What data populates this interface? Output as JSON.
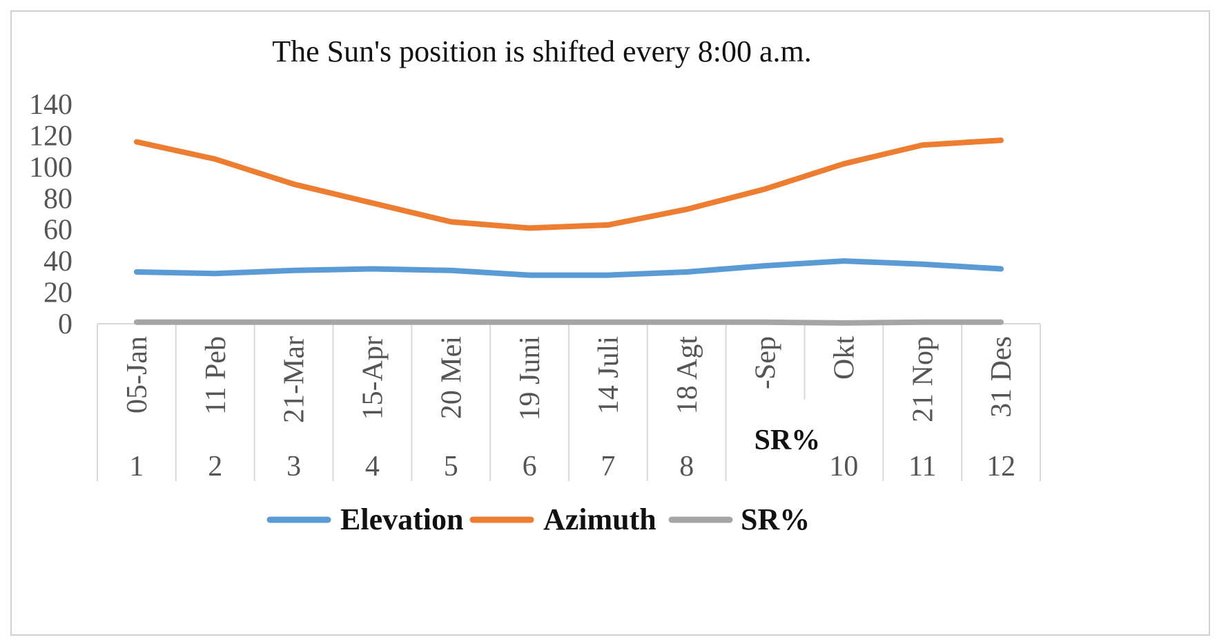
{
  "chart_data": {
    "type": "line",
    "title": "The Sun's position is shifted every 8:00 a.m.",
    "categories": [
      {
        "date": "05-Jan",
        "month": "1"
      },
      {
        "date": "11 Peb",
        "month": "2"
      },
      {
        "date": "21-Mar",
        "month": "3"
      },
      {
        "date": "15-Apr",
        "month": "4"
      },
      {
        "date": "20 Mei",
        "month": "5"
      },
      {
        "date": "19 Juni",
        "month": "6"
      },
      {
        "date": "14 Juli",
        "month": "7"
      },
      {
        "date": "18 Agt",
        "month": "8"
      },
      {
        "date": "-Sep",
        "month": "9"
      },
      {
        "date": "Okt",
        "month": "10"
      },
      {
        "date": "21 Nop",
        "month": "11"
      },
      {
        "date": "31 Des",
        "month": "12"
      }
    ],
    "ylim": [
      0,
      140
    ],
    "yticks": [
      0,
      20,
      40,
      60,
      80,
      100,
      120,
      140
    ],
    "series": [
      {
        "name": "Elevation",
        "color": "#5B9BD5",
        "values": [
          33,
          32,
          34,
          35,
          34,
          31,
          31,
          33,
          37,
          40,
          38,
          35
        ]
      },
      {
        "name": "Azimuth",
        "color": "#ED7D31",
        "values": [
          116,
          105,
          89,
          77,
          65,
          61,
          63,
          73,
          86,
          102,
          114,
          117
        ]
      },
      {
        "name": "SR%",
        "color": "#A5A5A5",
        "values": [
          1,
          1,
          1,
          1,
          1,
          1,
          1,
          1,
          1,
          0.5,
          1,
          1
        ]
      }
    ],
    "legend": "bottom",
    "grid": false,
    "overlay_label": "SR%"
  }
}
